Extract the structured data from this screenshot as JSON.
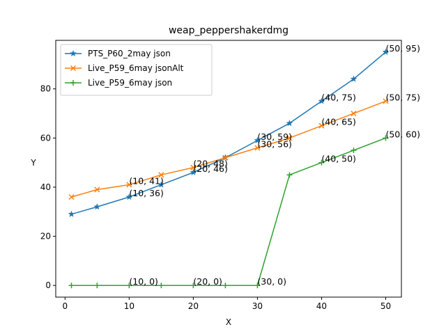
{
  "chart_data": {
    "type": "line",
    "title": "weap_peppershakerdmg",
    "xlabel": "X",
    "ylabel": "Y",
    "xlim": [
      -1.45,
      52.45
    ],
    "ylim": [
      -4.75,
      99.75
    ],
    "xticks": [
      0,
      10,
      20,
      30,
      40,
      50
    ],
    "yticks": [
      0,
      20,
      40,
      60,
      80
    ],
    "grid": false,
    "legend_position": "upper-left",
    "series": [
      {
        "name": "PTS_P60_2may json",
        "color": "#1f77b4",
        "marker": "star",
        "x": [
          1,
          5,
          10,
          15,
          20,
          25,
          30,
          35,
          40,
          45,
          50
        ],
        "y": [
          29,
          32,
          36,
          41,
          46,
          52,
          59,
          66,
          75,
          84,
          95
        ]
      },
      {
        "name": "Live_P59_6may jsonAlt",
        "color": "#ff7f0e",
        "marker": "x",
        "x": [
          1,
          5,
          10,
          15,
          20,
          25,
          30,
          35,
          40,
          45,
          50
        ],
        "y": [
          36,
          39,
          41,
          45,
          48,
          52,
          56,
          60,
          65,
          70,
          75
        ]
      },
      {
        "name": "Live_P59_6may json",
        "color": "#2ca02c",
        "marker": "plus",
        "x": [
          1,
          5,
          10,
          15,
          20,
          25,
          30,
          35,
          40,
          45,
          50
        ],
        "y": [
          0,
          0,
          0,
          0,
          0,
          0,
          0,
          45,
          50,
          55,
          60
        ]
      }
    ],
    "annotations": [
      {
        "text": "(10, 36)",
        "x": 10,
        "y": 36
      },
      {
        "text": "(20, 46)",
        "x": 20,
        "y": 46
      },
      {
        "text": "(30, 59)",
        "x": 30,
        "y": 59
      },
      {
        "text": "(40, 75)",
        "x": 40,
        "y": 75
      },
      {
        "text": "(50, 95)",
        "x": 50,
        "y": 95
      },
      {
        "text": "(10, 41)",
        "x": 10,
        "y": 41
      },
      {
        "text": "(20, 48)",
        "x": 20,
        "y": 48
      },
      {
        "text": "(30, 56)",
        "x": 30,
        "y": 56
      },
      {
        "text": "(40, 65)",
        "x": 40,
        "y": 65
      },
      {
        "text": "(50, 75)",
        "x": 50,
        "y": 75
      },
      {
        "text": "(10, 0)",
        "x": 10,
        "y": 0
      },
      {
        "text": "(20, 0)",
        "x": 20,
        "y": 0
      },
      {
        "text": "(30, 0)",
        "x": 30,
        "y": 0
      },
      {
        "text": "(40, 50)",
        "x": 40,
        "y": 50
      },
      {
        "text": "(50, 60)",
        "x": 50,
        "y": 60
      }
    ]
  }
}
